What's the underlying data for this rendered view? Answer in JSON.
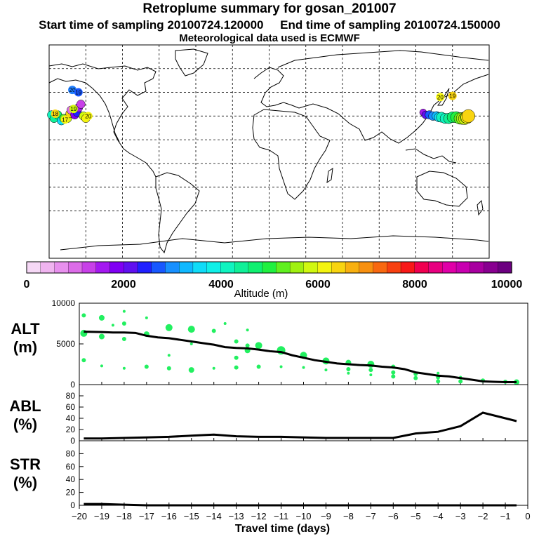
{
  "header": {
    "title": "Retroplume summary for gosan_201007",
    "start_label": "Start time of sampling 20100724.120000",
    "end_label": "End time of sampling 20100724.150000",
    "met_label": "Meteorological data used is ECMWF"
  },
  "colorbar": {
    "ticks": [
      "0",
      "2000",
      "4000",
      "6000",
      "8000",
      "10000"
    ],
    "label": "Altitude (m)",
    "colors": [
      "#f6d8f6",
      "#f0b4f0",
      "#e890ee",
      "#dc6ce8",
      "#c840e8",
      "#a418f0",
      "#8000f4",
      "#6010f0",
      "#2020ff",
      "#1858ff",
      "#1890ff",
      "#10b8ff",
      "#10dcf8",
      "#10f0e8",
      "#10f4c0",
      "#10f098",
      "#10f070",
      "#20f040",
      "#60f020",
      "#a0f010",
      "#d0f810",
      "#f4f410",
      "#f8d410",
      "#f8b010",
      "#f89010",
      "#f86810",
      "#f84010",
      "#f81818",
      "#f00050",
      "#e80080",
      "#e000a8",
      "#c800b0",
      "#a800a0",
      "#880090",
      "#6c0080"
    ]
  },
  "chart_data": [
    {
      "type": "scatter",
      "panel": "ALT",
      "ylabel": "ALT\n(m)",
      "ylim": [
        0,
        10000
      ],
      "yticks": [
        "10000",
        "5000",
        "0"
      ],
      "xlim": [
        -20,
        0
      ],
      "mean_line": {
        "x": [
          -19.8,
          -19,
          -18.5,
          -18,
          -17.5,
          -17,
          -16.5,
          -16,
          -15.5,
          -15,
          -14.5,
          -14,
          -13.5,
          -13,
          -12.5,
          -12,
          -11.5,
          -11,
          -10.5,
          -10,
          -9.5,
          -9,
          -8.5,
          -8,
          -7.5,
          -7,
          -6.5,
          -6,
          -5.5,
          -5,
          -4.5,
          -4,
          -3.5,
          -3,
          -2.5,
          -2,
          -1.5,
          -1,
          -0.5
        ],
        "y": [
          6500,
          6450,
          6400,
          6400,
          6350,
          6000,
          5800,
          5700,
          5500,
          5300,
          5100,
          4900,
          4600,
          4500,
          4450,
          4300,
          4100,
          4000,
          3600,
          3300,
          3000,
          2800,
          2600,
          2500,
          2400,
          2350,
          2200,
          2100,
          1900,
          1500,
          1300,
          1100,
          1000,
          800,
          600,
          400,
          350,
          300,
          300
        ]
      },
      "dots": [
        {
          "x": -19.8,
          "y": 8500,
          "s": 3
        },
        {
          "x": -19.8,
          "y": 6300,
          "s": 5
        },
        {
          "x": -19.8,
          "y": 3000,
          "s": 3
        },
        {
          "x": -19,
          "y": 8200,
          "s": 4
        },
        {
          "x": -19,
          "y": 5900,
          "s": 4
        },
        {
          "x": -19,
          "y": 2300,
          "s": 2
        },
        {
          "x": -18.5,
          "y": 7300,
          "s": 2
        },
        {
          "x": -18,
          "y": 9000,
          "s": 2
        },
        {
          "x": -18,
          "y": 7500,
          "s": 3
        },
        {
          "x": -18,
          "y": 5600,
          "s": 3
        },
        {
          "x": -18,
          "y": 2000,
          "s": 2
        },
        {
          "x": -17,
          "y": 8200,
          "s": 2
        },
        {
          "x": -17,
          "y": 6200,
          "s": 4
        },
        {
          "x": -17,
          "y": 2200,
          "s": 3
        },
        {
          "x": -16,
          "y": 7000,
          "s": 5
        },
        {
          "x": -16,
          "y": 3600,
          "s": 2
        },
        {
          "x": -16,
          "y": 2000,
          "s": 3
        },
        {
          "x": -15,
          "y": 6800,
          "s": 5
        },
        {
          "x": -15,
          "y": 5000,
          "s": 2
        },
        {
          "x": -15,
          "y": 1800,
          "s": 4
        },
        {
          "x": -14,
          "y": 6600,
          "s": 3
        },
        {
          "x": -14,
          "y": 2000,
          "s": 2
        },
        {
          "x": -13.5,
          "y": 7500,
          "s": 2
        },
        {
          "x": -13,
          "y": 5300,
          "s": 3
        },
        {
          "x": -13,
          "y": 3300,
          "s": 3
        },
        {
          "x": -13,
          "y": 2100,
          "s": 3
        },
        {
          "x": -12.5,
          "y": 6700,
          "s": 2
        },
        {
          "x": -12.5,
          "y": 4800,
          "s": 3
        },
        {
          "x": -12.5,
          "y": 4200,
          "s": 4
        },
        {
          "x": -12,
          "y": 4800,
          "s": 5
        },
        {
          "x": -12,
          "y": 2200,
          "s": 3
        },
        {
          "x": -11,
          "y": 4200,
          "s": 6
        },
        {
          "x": -11,
          "y": 2200,
          "s": 2
        },
        {
          "x": -10,
          "y": 3600,
          "s": 5
        },
        {
          "x": -10,
          "y": 2100,
          "s": 2
        },
        {
          "x": -9,
          "y": 2900,
          "s": 5
        },
        {
          "x": -9,
          "y": 1800,
          "s": 2
        },
        {
          "x": -8,
          "y": 2700,
          "s": 4
        },
        {
          "x": -8,
          "y": 1900,
          "s": 3
        },
        {
          "x": -8,
          "y": 1400,
          "s": 2
        },
        {
          "x": -7,
          "y": 2500,
          "s": 5
        },
        {
          "x": -7,
          "y": 1800,
          "s": 3
        },
        {
          "x": -7,
          "y": 1200,
          "s": 2
        },
        {
          "x": -6,
          "y": 2200,
          "s": 3
        },
        {
          "x": -6,
          "y": 1500,
          "s": 3
        },
        {
          "x": -6,
          "y": 1000,
          "s": 3
        },
        {
          "x": -5,
          "y": 1300,
          "s": 3
        },
        {
          "x": -5,
          "y": 800,
          "s": 3
        },
        {
          "x": -4,
          "y": 1400,
          "s": 2
        },
        {
          "x": -4,
          "y": 900,
          "s": 3
        },
        {
          "x": -4,
          "y": 400,
          "s": 3
        },
        {
          "x": -3,
          "y": 900,
          "s": 2
        },
        {
          "x": -3,
          "y": 400,
          "s": 3
        },
        {
          "x": -2,
          "y": 500,
          "s": 3
        },
        {
          "x": -1,
          "y": 350,
          "s": 3
        },
        {
          "x": -0.5,
          "y": 300,
          "s": 4
        }
      ]
    },
    {
      "type": "line",
      "panel": "ABL",
      "ylabel": "ABL\n(%)",
      "ylim": [
        0,
        100
      ],
      "yticks": [
        "0",
        "20",
        "40",
        "60",
        "80"
      ],
      "x": [
        -19.8,
        -19,
        -18,
        -17,
        -16,
        -15,
        -14,
        -13,
        -12,
        -11,
        -10,
        -9,
        -8,
        -7,
        -6,
        -5,
        -4,
        -3,
        -2,
        -1,
        -0.5
      ],
      "y": [
        4,
        4,
        5,
        6,
        7,
        9,
        11,
        8,
        7,
        7,
        6,
        5,
        5,
        5,
        5,
        13,
        16,
        26,
        50,
        40,
        35
      ]
    },
    {
      "type": "line",
      "panel": "STR",
      "ylabel": "STR\n(%)",
      "ylim": [
        0,
        100
      ],
      "yticks": [
        "0",
        "20",
        "40",
        "60",
        "80"
      ],
      "x": [
        -19.8,
        -19,
        -18,
        -17,
        -16,
        -15,
        -14,
        -13,
        -12,
        -11,
        -10,
        -9,
        -8,
        -7,
        -6,
        -5,
        -4,
        -3,
        -2,
        -1,
        -0.5
      ],
      "y": [
        2,
        2,
        1,
        0,
        0,
        0,
        0,
        0,
        0,
        0,
        0,
        0,
        0,
        0,
        0,
        0,
        0,
        0,
        0,
        0,
        0
      ],
      "xticks": [
        "-20",
        "-19",
        "-18",
        "-17",
        "-16",
        "-15",
        "-14",
        "-13",
        "-12",
        "-11",
        "-10",
        "-9",
        "-8",
        "-7",
        "-6",
        "-5",
        "-4",
        "-3",
        "-2",
        "-1",
        "0"
      ],
      "xlabel": "Travel time (days)"
    }
  ],
  "map": {
    "labels": [
      {
        "text": "20",
        "color": "#f4f410",
        "lon": 140,
        "lat": 46
      },
      {
        "text": "19",
        "color": "#f8d410",
        "lon": 150,
        "lat": 47
      },
      {
        "text": "20",
        "color": "#2080ff",
        "lon": -161,
        "lat": 52
      },
      {
        "text": "19",
        "color": "#1858ff",
        "lon": -156,
        "lat": 50
      },
      {
        "text": "20",
        "color": "#f4f410",
        "lon": -148,
        "lat": 30
      },
      {
        "text": "17",
        "color": "#f4f410",
        "lon": -167,
        "lat": 27
      },
      {
        "text": "18",
        "color": "#f8d410",
        "lon": -175,
        "lat": 32
      },
      {
        "text": "19",
        "color": "#d0f810",
        "lon": -160,
        "lat": 36
      }
    ]
  },
  "side_labels": {
    "alt": "ALT",
    "alt_unit": "(m)",
    "abl": "ABL",
    "abl_unit": "(%)",
    "str": "STR",
    "str_unit": "(%)"
  }
}
